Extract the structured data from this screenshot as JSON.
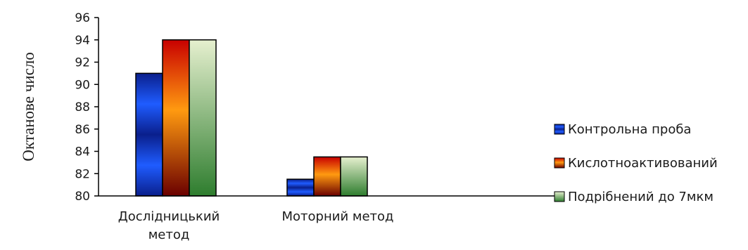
{
  "chart_data": {
    "type": "bar",
    "title": "",
    "xlabel": "",
    "ylabel": "Октанове число",
    "ylim": [
      80,
      96
    ],
    "yticks": [
      80,
      82,
      84,
      86,
      88,
      90,
      92,
      94,
      96
    ],
    "categories": [
      "Дослідницький метод",
      "Моторний метод"
    ],
    "series": [
      {
        "name": "Контрольна проба",
        "values": [
          91,
          81.5
        ],
        "colors": [
          "#0a1f8c",
          "#1f5cff"
        ]
      },
      {
        "name": "Кислотноактивований",
        "values": [
          94,
          83.5
        ],
        "colors": [
          "#c80000",
          "#ff9a10"
        ]
      },
      {
        "name": "Подрібнений до 7мкм",
        "values": [
          94,
          83.5
        ],
        "colors": [
          "#2e7d2e",
          "#e6f0cf"
        ]
      }
    ],
    "grid": false,
    "legend": "right"
  }
}
